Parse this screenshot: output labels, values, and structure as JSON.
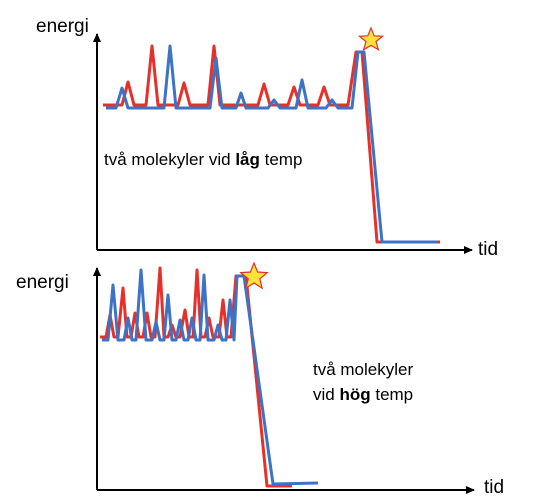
{
  "panels": [
    {
      "y_label": "energi",
      "x_label": "tid",
      "caption": {
        "before": "två molekyler vid ",
        "bold": "låg",
        "after": " temp"
      }
    },
    {
      "y_label": "energi",
      "x_label": "tid",
      "caption_line1": "två molekyler",
      "caption_line2": {
        "before": "vid ",
        "bold": "hög",
        "after": " temp"
      }
    }
  ],
  "colors": {
    "red_series": "#e8302a",
    "blue_series": "#3d72c4",
    "star_fill": "#ffe23a",
    "star_stroke": "#e8302a",
    "axis": "#000000"
  }
}
